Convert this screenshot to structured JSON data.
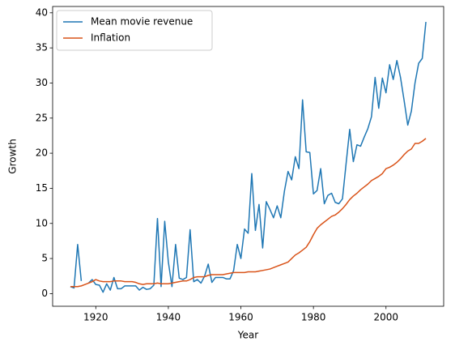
{
  "chart_data": {
    "type": "line",
    "x_label": "Year",
    "y_label": "Growth",
    "x": [
      1913,
      1914,
      1915,
      1916,
      1917,
      1918,
      1919,
      1920,
      1921,
      1922,
      1923,
      1924,
      1925,
      1926,
      1927,
      1928,
      1929,
      1930,
      1931,
      1932,
      1933,
      1934,
      1935,
      1936,
      1937,
      1938,
      1939,
      1940,
      1941,
      1942,
      1943,
      1944,
      1945,
      1946,
      1947,
      1948,
      1949,
      1950,
      1951,
      1952,
      1953,
      1954,
      1955,
      1956,
      1957,
      1958,
      1959,
      1960,
      1961,
      1962,
      1963,
      1964,
      1965,
      1966,
      1967,
      1968,
      1969,
      1970,
      1971,
      1972,
      1973,
      1974,
      1975,
      1976,
      1977,
      1978,
      1979,
      1980,
      1981,
      1982,
      1983,
      1984,
      1985,
      1986,
      1987,
      1988,
      1989,
      1990,
      1991,
      1992,
      1993,
      1994,
      1995,
      1996,
      1997,
      1998,
      1999,
      2000,
      2001,
      2002,
      2003,
      2004,
      2005,
      2006,
      2007,
      2008,
      2009,
      2010,
      2011
    ],
    "series": [
      {
        "name": "Mean movie revenue",
        "color": "#1f77b4",
        "values": [
          1.0,
          0.8,
          7.0,
          1.8,
          null,
          1.5,
          2.0,
          1.3,
          1.2,
          0.2,
          1.4,
          0.5,
          2.3,
          0.7,
          0.7,
          1.1,
          1.1,
          1.1,
          1.1,
          0.5,
          0.9,
          0.6,
          0.7,
          1.2,
          10.7,
          1.0,
          10.3,
          4.5,
          1.0,
          7.0,
          2.2,
          2.0,
          2.3,
          9.1,
          1.7,
          2.0,
          1.5,
          2.5,
          4.2,
          1.6,
          2.3,
          2.3,
          2.3,
          2.1,
          2.1,
          3.3,
          7.0,
          5.0,
          9.2,
          8.6,
          17.1,
          9.0,
          12.7,
          6.5,
          13.1,
          12.0,
          10.8,
          12.5,
          10.8,
          14.6,
          17.4,
          16.2,
          19.5,
          17.8,
          27.6,
          20.2,
          20.1,
          14.2,
          14.7,
          17.8,
          12.8,
          14.0,
          14.3,
          13.0,
          12.8,
          13.5,
          18.5,
          23.4,
          18.8,
          21.2,
          21.0,
          22.3,
          23.5,
          25.2,
          30.8,
          26.4,
          30.7,
          28.6,
          32.6,
          30.5,
          33.2,
          30.8,
          27.5,
          24.0,
          26.0,
          30.0,
          32.8,
          33.5,
          38.7
        ]
      },
      {
        "name": "Inflation",
        "color": "#d95319",
        "values": [
          1.0,
          1.0,
          1.0,
          1.1,
          1.3,
          1.5,
          1.7,
          2.0,
          1.8,
          1.7,
          1.7,
          1.7,
          1.8,
          1.8,
          1.8,
          1.7,
          1.7,
          1.7,
          1.6,
          1.4,
          1.3,
          1.4,
          1.4,
          1.4,
          1.5,
          1.4,
          1.4,
          1.4,
          1.5,
          1.6,
          1.7,
          1.8,
          1.8,
          2.0,
          2.3,
          2.4,
          2.4,
          2.4,
          2.6,
          2.7,
          2.7,
          2.7,
          2.7,
          2.8,
          2.9,
          3.0,
          3.0,
          3.0,
          3.0,
          3.1,
          3.1,
          3.1,
          3.2,
          3.3,
          3.4,
          3.5,
          3.7,
          3.9,
          4.1,
          4.3,
          4.5,
          5.0,
          5.5,
          5.8,
          6.2,
          6.6,
          7.4,
          8.4,
          9.3,
          9.8,
          10.2,
          10.6,
          11.0,
          11.2,
          11.6,
          12.1,
          12.7,
          13.4,
          13.9,
          14.3,
          14.8,
          15.2,
          15.6,
          16.1,
          16.4,
          16.7,
          17.1,
          17.8,
          18.0,
          18.3,
          18.7,
          19.2,
          19.8,
          20.3,
          20.6,
          21.4,
          21.4,
          21.7,
          22.1
        ]
      }
    ],
    "xlim": [
      1908.1,
      2015.9
    ],
    "xticks": [
      1920,
      1940,
      1960,
      1980,
      2000
    ],
    "ylim": [
      -1.8,
      40.9
    ],
    "yticks": [
      0,
      5,
      10,
      15,
      20,
      25,
      30,
      35,
      40
    ],
    "legend": "upper left"
  }
}
